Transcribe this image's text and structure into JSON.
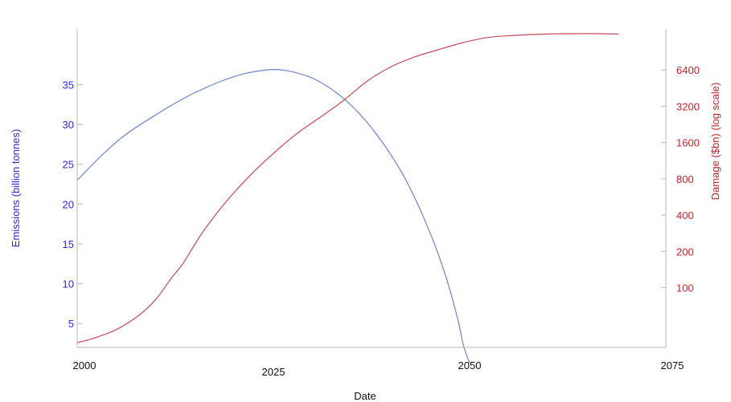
{
  "chart_data": {
    "type": "line",
    "xlabel": "Date",
    "x_ticks": [
      2000,
      2025,
      2050,
      2075
    ],
    "xlim": [
      2000,
      2075
    ],
    "left_axis": {
      "label": "Emissions (billion tonnes)",
      "ticks": [
        5,
        10,
        15,
        20,
        25,
        30,
        35
      ],
      "ylim": [
        2,
        42
      ],
      "color": "#2a2ad6"
    },
    "right_axis": {
      "label": "Damage ($bn) (log scale)",
      "scale": "log",
      "ticks": [
        100,
        200,
        400,
        800,
        1600,
        3200,
        6400
      ],
      "ylim": [
        32,
        14000
      ],
      "color": "#c0262c"
    },
    "grid": false,
    "legend": "none",
    "series": [
      {
        "axis": "left",
        "color": "#6e86c9",
        "x": [
          2000,
          2003,
          2006,
          2010,
          2014,
          2018,
          2021,
          2023,
          2025,
          2027,
          2030,
          2033,
          2036,
          2039,
          2042,
          2045,
          2047,
          2048.5,
          2049.2,
          2050
        ],
        "values": [
          23,
          26,
          28.6,
          31.2,
          33.5,
          35.3,
          36.3,
          36.7,
          36.9,
          36.7,
          35.8,
          34,
          31.3,
          27.6,
          22.8,
          16.3,
          10.8,
          5.5,
          2.3,
          0
        ]
      },
      {
        "axis": "right",
        "color": "#c44a5c",
        "x": [
          2000,
          2002,
          2005,
          2008,
          2010,
          2012,
          2013.5,
          2016,
          2019,
          2022,
          2025,
          2028,
          2031,
          2034,
          2037,
          2040,
          2043,
          2046,
          2049,
          2052,
          2055,
          2060,
          2065,
          2069
        ],
        "values": [
          35,
          38,
          45,
          60,
          80,
          120,
          160,
          290,
          520,
          850,
          1300,
          1900,
          2600,
          3600,
          5200,
          6800,
          8200,
          9400,
          10700,
          11800,
          12300,
          12700,
          12800,
          12700
        ]
      }
    ]
  }
}
